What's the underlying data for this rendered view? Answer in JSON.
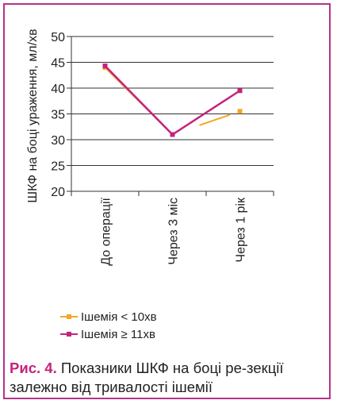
{
  "chart_data": {
    "type": "line",
    "ylabel": "ШКФ на боці ураження, мл/хв",
    "xlabel": "",
    "ylim": [
      20,
      50
    ],
    "yticks": [
      20,
      25,
      30,
      35,
      40,
      45,
      50
    ],
    "categories": [
      "До операції",
      "Через 3 міс",
      "Через 1 рік"
    ],
    "grid": true,
    "legend_position": "bottom",
    "series": [
      {
        "name": "Ішемія < 10хв",
        "values": [
          44,
          31,
          35.5
        ],
        "color": "#f5a623"
      },
      {
        "name": "Ішемія ≥ 11хв",
        "values": [
          44.3,
          31,
          39.5
        ],
        "color": "#c4237d"
      }
    ]
  },
  "caption": {
    "label": "Рис. 4.",
    "text": " Показники ШКФ на боці ре-зекції залежно від тривалості ішемії"
  },
  "colors": {
    "frame": "#b5338a",
    "grid": "#333333"
  }
}
